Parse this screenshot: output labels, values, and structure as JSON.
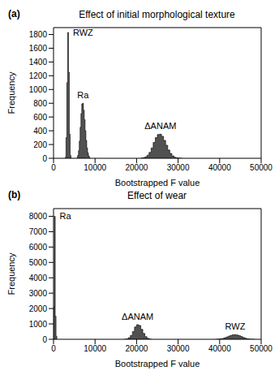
{
  "chart_data": [
    {
      "type": "histogram",
      "panel": "(a)",
      "title": "Effect of initial morphological texture",
      "x_label": "Bootstrapped F value",
      "y_label": "Frequency",
      "color": "#333333",
      "xlim": [
        0,
        50000
      ],
      "xticks": [
        0,
        10000,
        20000,
        30000,
        40000,
        50000
      ],
      "ylim": [
        0,
        1900
      ],
      "yticks": [
        0,
        200,
        400,
        600,
        800,
        1000,
        1200,
        1400,
        1600,
        1800
      ],
      "series": [
        {
          "name": "RWZ",
          "bins": [
            2800,
            3000,
            3200,
            3400,
            3600,
            3800,
            4000,
            4200
          ],
          "values": [
            20,
            300,
            1100,
            1830,
            1250,
            350,
            40
          ]
        },
        {
          "name": "Ra",
          "bins": [
            5600,
            5800,
            6000,
            6200,
            6400,
            6600,
            6800,
            7000,
            7200,
            7400,
            7600,
            7800,
            8000,
            8200,
            8400,
            8600,
            8800
          ],
          "values": [
            10,
            40,
            110,
            250,
            450,
            650,
            790,
            800,
            700,
            560,
            400,
            260,
            150,
            80,
            35,
            10
          ]
        },
        {
          "name": "ΔANAM",
          "bins": [
            21000,
            21500,
            22000,
            22500,
            23000,
            23500,
            24000,
            24500,
            25000,
            25500,
            26000,
            26500,
            27000,
            27500,
            28000,
            28500,
            29000,
            29500,
            30000,
            30500,
            31000
          ],
          "values": [
            3,
            8,
            20,
            45,
            85,
            150,
            230,
            300,
            345,
            350,
            320,
            260,
            190,
            120,
            70,
            35,
            15,
            7,
            3,
            1
          ]
        }
      ]
    },
    {
      "type": "histogram",
      "panel": "(b)",
      "title": "Effect of wear",
      "x_label": "Bootstrapped F value",
      "y_label": "Frequency",
      "color": "#333333",
      "xlim": [
        0,
        50000
      ],
      "xticks": [
        0,
        10000,
        20000,
        30000,
        40000,
        50000
      ],
      "ylim": [
        0,
        8500
      ],
      "yticks": [
        0,
        1000,
        2000,
        3000,
        4000,
        5000,
        6000,
        7000,
        8000
      ],
      "series": [
        {
          "name": "Ra",
          "bins": [
            0,
            200,
            400,
            600,
            800
          ],
          "values": [
            2100,
            8000,
            1500,
            200
          ]
        },
        {
          "name": "ΔANAM",
          "bins": [
            17000,
            17500,
            18000,
            18500,
            19000,
            19500,
            20000,
            20500,
            21000,
            21500,
            22000,
            22500,
            23000,
            23500
          ],
          "values": [
            5,
            30,
            100,
            250,
            500,
            800,
            950,
            900,
            650,
            380,
            170,
            60,
            15
          ]
        },
        {
          "name": "RWZ",
          "bins": [
            39000,
            39500,
            40000,
            40500,
            41000,
            41500,
            42000,
            42500,
            43000,
            43500,
            44000,
            44500,
            45000,
            45500,
            46000,
            46500,
            47000,
            47500,
            48000,
            48500
          ],
          "values": [
            3,
            10,
            25,
            50,
            90,
            140,
            200,
            250,
            290,
            300,
            280,
            240,
            180,
            120,
            70,
            35,
            15,
            6,
            2
          ]
        }
      ]
    }
  ]
}
